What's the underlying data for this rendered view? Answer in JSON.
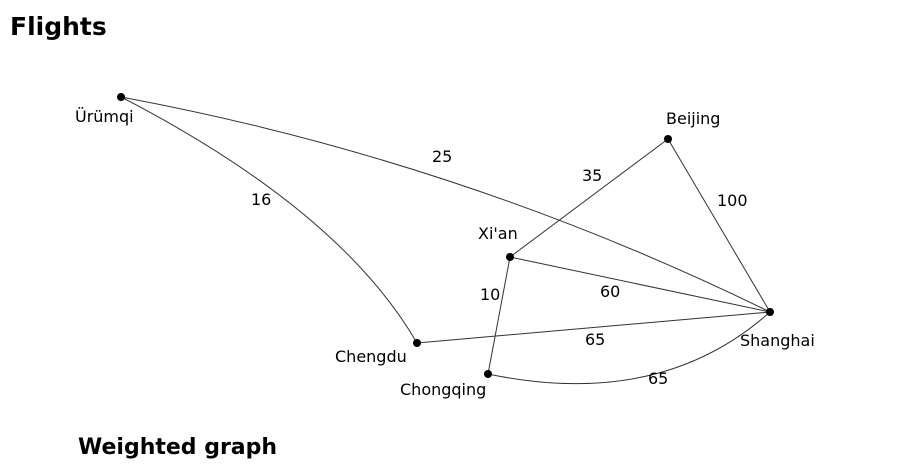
{
  "title": "Flights",
  "caption": "Weighted graph",
  "colors": {
    "edge": "#333333",
    "node": "#000000",
    "text": "#000000"
  },
  "nodes": [
    {
      "id": "urumqi",
      "label": "Ürümqi"
    },
    {
      "id": "beijing",
      "label": "Beijing"
    },
    {
      "id": "xian",
      "label": "Xi'an"
    },
    {
      "id": "shanghai",
      "label": "Shanghai"
    },
    {
      "id": "chengdu",
      "label": "Chengdu"
    },
    {
      "id": "chongqing",
      "label": "Chongqing"
    }
  ],
  "edges": [
    {
      "id": "urumqi-shanghai",
      "from": "urumqi",
      "to": "shanghai",
      "weight": "25"
    },
    {
      "id": "urumqi-chengdu",
      "from": "urumqi",
      "to": "chengdu",
      "weight": "16"
    },
    {
      "id": "beijing-xian",
      "from": "beijing",
      "to": "xian",
      "weight": "35"
    },
    {
      "id": "beijing-shanghai",
      "from": "beijing",
      "to": "shanghai",
      "weight": "100"
    },
    {
      "id": "xian-shanghai",
      "from": "xian",
      "to": "shanghai",
      "weight": "60"
    },
    {
      "id": "xian-chongqing",
      "from": "xian",
      "to": "chongqing",
      "weight": "10"
    },
    {
      "id": "chengdu-shanghai",
      "from": "chengdu",
      "to": "shanghai",
      "weight": "65"
    },
    {
      "id": "chongqing-shanghai",
      "from": "chongqing",
      "to": "shanghai",
      "weight": "65"
    }
  ]
}
